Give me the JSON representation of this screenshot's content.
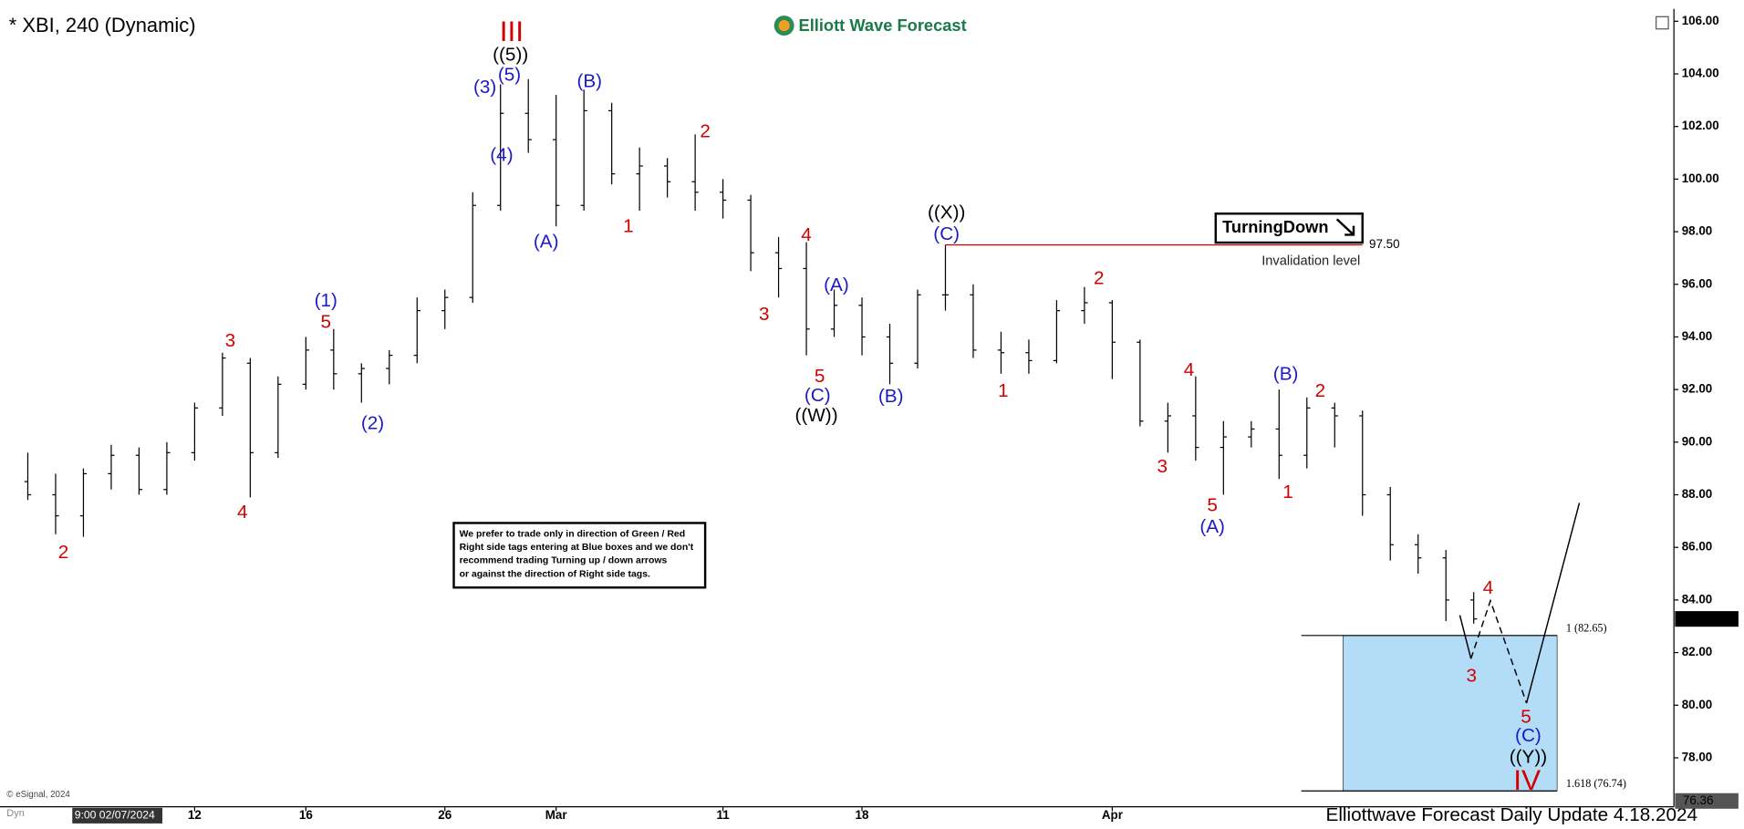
{
  "chart_data": {
    "type": "ohlc",
    "title": "* XBI, 240 (Dynamic)",
    "brand": "Elliott Wave Forecast",
    "footer": "Elliottwave Forecast Daily Update 4.18.2024",
    "copyright": "© eSignal, 2024",
    "mode_tag": "Dyn",
    "cursor_time": "9:00 02/07/2024",
    "cursor_price": 76.36,
    "color": "#000000",
    "x": [
      -3,
      -2,
      -1,
      0,
      1,
      2,
      3,
      4,
      5,
      6,
      7,
      8,
      9,
      10,
      11,
      12,
      13,
      14,
      15,
      16,
      17,
      18,
      19,
      20,
      21,
      22,
      23,
      24,
      25,
      26,
      27,
      28,
      29,
      30,
      31,
      32,
      33,
      34,
      35,
      36,
      37,
      38,
      39,
      40,
      41,
      42,
      43,
      44,
      45,
      46,
      47,
      48,
      49
    ],
    "open": [
      88.5,
      88.0,
      87.2,
      88.8,
      89.5,
      88.2,
      89.6,
      91.3,
      93.0,
      89.6,
      92.2,
      93.5,
      92.6,
      92.8,
      93.3,
      95.0,
      95.5,
      99.0,
      102.5,
      101.5,
      99.0,
      102.6,
      100.2,
      100.5,
      99.9,
      99.5,
      99.2,
      97.2,
      96.6,
      94.3,
      95.2,
      94.0,
      93.0,
      95.6,
      95.6,
      93.5,
      93.4,
      93.1,
      95.0,
      95.3,
      93.8,
      90.8,
      91.0,
      89.8,
      90.2,
      90.5,
      89.5,
      91.3,
      91.0,
      88.0,
      86.1,
      85.6,
      84.0
    ],
    "high": [
      89.6,
      88.8,
      89.0,
      89.9,
      89.8,
      90.0,
      91.5,
      93.4,
      93.2,
      92.5,
      94.0,
      94.3,
      93.0,
      93.5,
      95.5,
      95.8,
      99.5,
      103.6,
      103.8,
      103.2,
      103.4,
      102.9,
      101.2,
      100.8,
      101.7,
      100.0,
      99.4,
      97.8,
      97.6,
      95.8,
      95.5,
      94.5,
      95.8,
      97.5,
      96.0,
      94.2,
      93.9,
      95.4,
      95.9,
      95.4,
      93.9,
      91.5,
      92.5,
      90.8,
      90.8,
      92.0,
      91.7,
      91.5,
      91.2,
      88.3,
      86.5,
      85.9,
      84.3
    ],
    "low": [
      87.8,
      86.5,
      86.4,
      88.2,
      88.0,
      88.0,
      89.3,
      91.0,
      87.9,
      89.4,
      92.0,
      92.0,
      91.5,
      92.2,
      93.0,
      94.3,
      95.3,
      98.8,
      101.0,
      98.2,
      98.8,
      99.8,
      98.8,
      99.3,
      98.8,
      98.5,
      96.5,
      95.5,
      93.3,
      94.0,
      93.3,
      92.2,
      92.8,
      95.0,
      93.2,
      92.6,
      92.6,
      93.0,
      94.5,
      92.4,
      90.6,
      89.6,
      89.3,
      88.0,
      89.8,
      88.6,
      89.0,
      89.8,
      87.2,
      85.5,
      85.0,
      83.2,
      83.1
    ],
    "close": [
      88.0,
      87.2,
      88.8,
      89.5,
      88.2,
      89.6,
      91.3,
      93.2,
      89.6,
      92.2,
      93.5,
      92.6,
      92.8,
      93.3,
      95.0,
      95.5,
      99.0,
      102.5,
      101.5,
      99.0,
      102.6,
      100.2,
      100.5,
      99.9,
      99.5,
      99.2,
      97.2,
      96.6,
      94.3,
      95.2,
      94.0,
      93.0,
      95.6,
      95.6,
      93.5,
      93.4,
      93.1,
      95.0,
      95.3,
      93.8,
      90.8,
      91.0,
      89.8,
      90.2,
      90.5,
      89.5,
      91.3,
      91.0,
      88.0,
      86.1,
      85.6,
      84.0,
      83.28
    ],
    "xlim": [
      -3.8,
      56
    ],
    "ylim": [
      76.14,
      106.47
    ],
    "xticks": [
      {
        "value": 3,
        "label": "12"
      },
      {
        "value": 7,
        "label": "16"
      },
      {
        "value": 12,
        "label": "26"
      },
      {
        "value": 16,
        "label": "Mar"
      },
      {
        "value": 22,
        "label": "11"
      },
      {
        "value": 27,
        "label": "18"
      },
      {
        "value": 36,
        "label": "Apr"
      }
    ],
    "yticks": [
      {
        "value": 78,
        "label": "78.00"
      },
      {
        "value": 80,
        "label": "80.00"
      },
      {
        "value": 82,
        "label": "82.00"
      },
      {
        "value": 84,
        "label": "84.00"
      },
      {
        "value": 86,
        "label": "86.00"
      },
      {
        "value": 88,
        "label": "88.00"
      },
      {
        "value": 90,
        "label": "90.00"
      },
      {
        "value": 92,
        "label": "92.00"
      },
      {
        "value": 94,
        "label": "94.00"
      },
      {
        "value": 96,
        "label": "96.00"
      },
      {
        "value": 98,
        "label": "98.00"
      },
      {
        "value": 100,
        "label": "100.00"
      },
      {
        "value": 102,
        "label": "102.00"
      },
      {
        "value": 104,
        "label": "104.00"
      },
      {
        "value": 106,
        "label": "106.00"
      }
    ],
    "invalidation": {
      "value": 97.5,
      "value_label": "97.50",
      "label": "Invalidation level",
      "tag": "TurningDown",
      "x": [
        30,
        45
      ],
      "color": "#cc0000"
    },
    "target_zone": {
      "x": [
        44.3,
        52
      ],
      "line_x": [
        42.8,
        52
      ],
      "top": 82.65,
      "bottom": 76.74,
      "top_label": "1 (82.65)",
      "bottom_label": "1.618 (76.74)",
      "color": "#b3dcf7"
    },
    "projections": [
      {
        "x": [
          48.5,
          48.9
        ],
        "values": [
          83.42,
          81.77
        ],
        "dashed": false
      },
      {
        "x": [
          48.9,
          49.6,
          50.9
        ],
        "values": [
          81.77,
          83.97,
          80.08
        ],
        "dashed": true
      },
      {
        "x": [
          50.9,
          52.8
        ],
        "values": [
          80.08,
          87.69
        ],
        "dashed": false
      }
    ],
    "disclaimer": [
      "We prefer to trade only in direction of Green / Red",
      "Right side tags entering at Blue boxes and we don't",
      "recommend trading Turning up / down arrows",
      "or against the direction of Right side tags."
    ],
    "wave_labels": [
      {
        "text": "III",
        "color": "#d40000"
      },
      {
        "text": "((5))",
        "color": "#000000"
      },
      {
        "text": "(3)",
        "color": "#1a1ac8"
      },
      {
        "text": "(5)",
        "color": "#1a1ac8"
      },
      {
        "text": "(4)",
        "color": "#1a1ac8"
      },
      {
        "text": "(A)",
        "color": "#1a1ac8"
      },
      {
        "text": "(B)",
        "color": "#1a1ac8"
      },
      {
        "text": "1",
        "color": "#d40000"
      },
      {
        "text": "2",
        "color": "#d40000"
      },
      {
        "text": "4",
        "color": "#d40000"
      },
      {
        "text": "3",
        "color": "#d40000"
      },
      {
        "text": "(A)",
        "color": "#1a1ac8"
      },
      {
        "text": "5",
        "color": "#d40000"
      },
      {
        "text": "(C)",
        "color": "#1a1ac8"
      },
      {
        "text": "((W))",
        "color": "#000000"
      },
      {
        "text": "(B)",
        "color": "#1a1ac8"
      },
      {
        "text": "((X))",
        "color": "#000000"
      },
      {
        "text": "(C)",
        "color": "#1a1ac8"
      },
      {
        "text": "1",
        "color": "#d40000"
      },
      {
        "text": "2",
        "color": "#d40000"
      },
      {
        "text": "4",
        "color": "#d40000"
      },
      {
        "text": "3",
        "color": "#d40000"
      },
      {
        "text": "5",
        "color": "#d40000"
      },
      {
        "text": "(A)",
        "color": "#1a1ac8"
      },
      {
        "text": "(B)",
        "color": "#1a1ac8"
      },
      {
        "text": "2",
        "color": "#d40000"
      },
      {
        "text": "1",
        "color": "#d40000"
      },
      {
        "text": "4",
        "color": "#d40000"
      },
      {
        "text": "3",
        "color": "#d40000"
      },
      {
        "text": "5",
        "color": "#d40000"
      },
      {
        "text": "(C)",
        "color": "#1a1ac8"
      },
      {
        "text": "((Y))",
        "color": "#000000"
      },
      {
        "text": "IV",
        "color": "#d40000"
      },
      {
        "text": "(1)",
        "color": "#1a1ac8"
      },
      {
        "text": "5",
        "color": "#d40000"
      },
      {
        "text": "3",
        "color": "#d40000"
      },
      {
        "text": "4",
        "color": "#d40000"
      },
      {
        "text": "(2)",
        "color": "#1a1ac8"
      },
      {
        "text": "2",
        "color": "#d40000"
      }
    ]
  }
}
